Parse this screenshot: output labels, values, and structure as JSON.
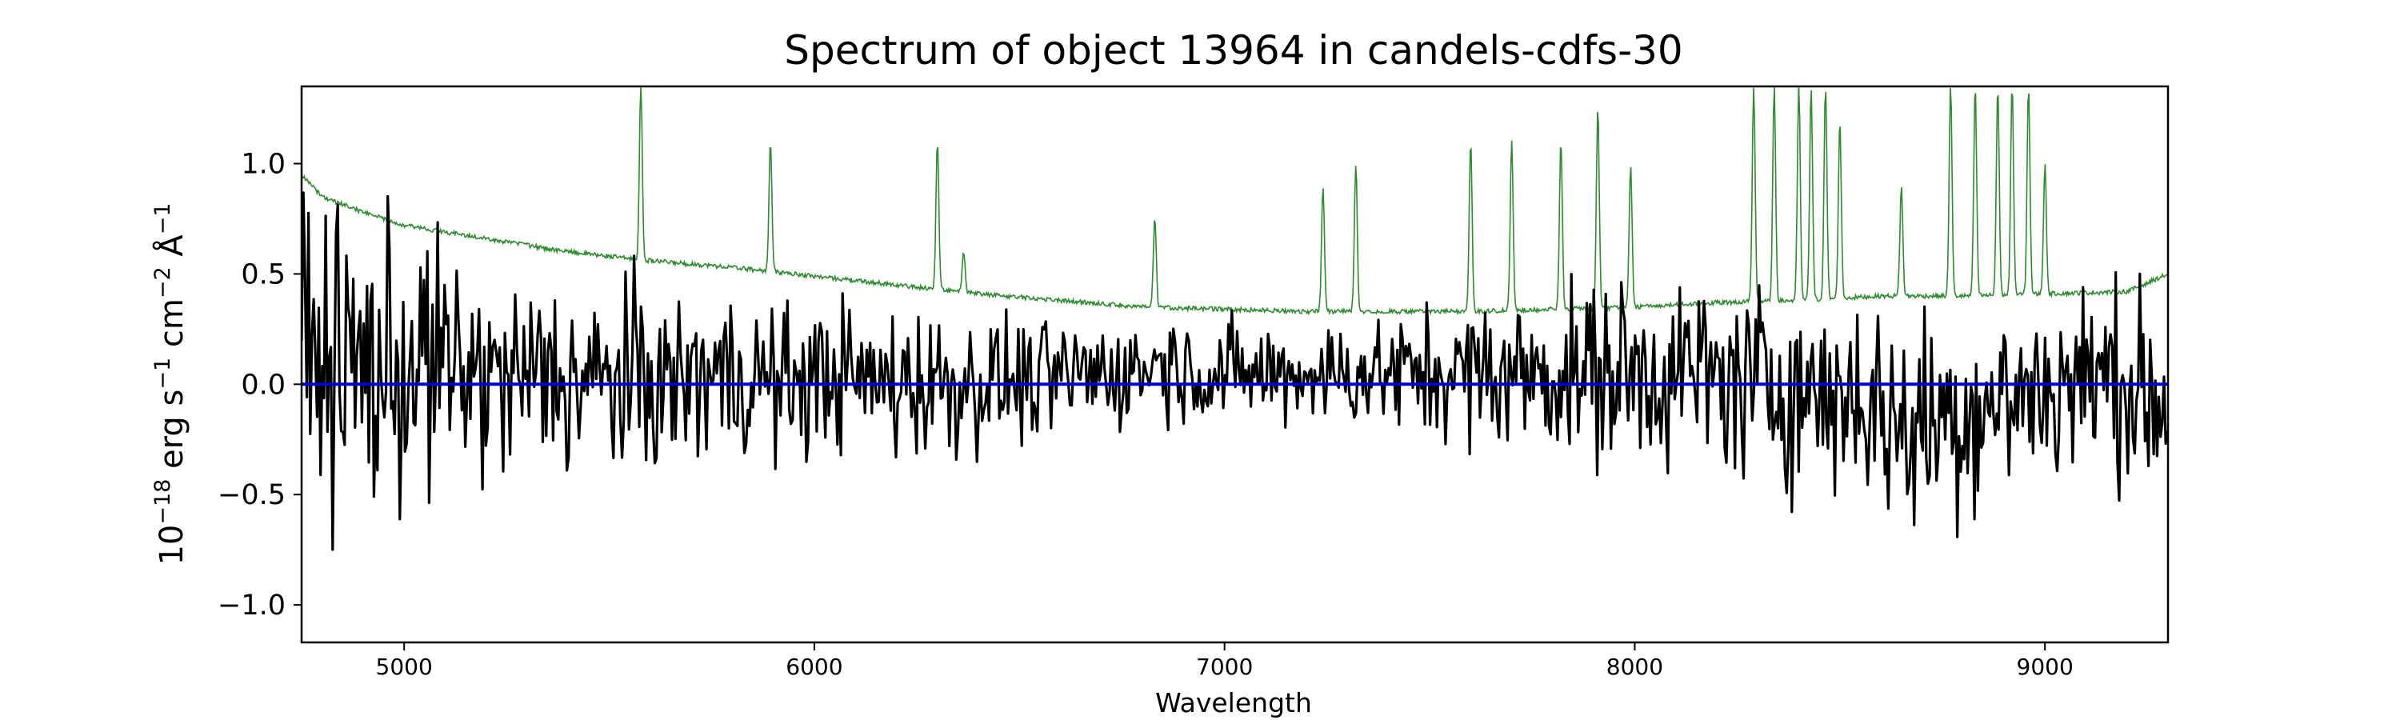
{
  "chart_data": {
    "type": "line",
    "title": "Spectrum of object 13964 in candels-cdfs-30",
    "xlabel": "Wavelength",
    "ylabel": "10^-18 erg s^-1 cm^-2 Å^-1",
    "xlim": [
      4750,
      9300
    ],
    "ylim": [
      -1.17,
      1.35
    ],
    "x_ticks": [
      5000,
      6000,
      7000,
      8000,
      9000
    ],
    "y_ticks": [
      {
        "value": 1.0,
        "label": "1.0"
      },
      {
        "value": 0.5,
        "label": "0.5"
      },
      {
        "value": 0.0,
        "label": "0.0"
      },
      {
        "value": -0.5,
        "label": "−0.5"
      },
      {
        "value": -1.0,
        "label": "−1.0"
      }
    ],
    "grid": false,
    "series": [
      {
        "role": "flux",
        "color": "#000000",
        "x": [
          4750,
          4850,
          4950,
          5050,
          5150,
          5250,
          5350,
          5450,
          5550,
          5650,
          5750,
          5850,
          5950,
          6050,
          6150,
          6250,
          6350,
          6450,
          6550,
          6650,
          6750,
          6850,
          6950,
          7050,
          7150,
          7250,
          7350,
          7450,
          7550,
          7650,
          7750,
          7850,
          7950,
          8050,
          8150,
          8250,
          8350,
          8450,
          8550,
          8650,
          8750,
          8850,
          8950,
          9050,
          9150,
          9300
        ],
        "values": [
          0.15,
          0.1,
          0.05,
          0.1,
          0.05,
          0.0,
          0.05,
          0.0,
          0.02,
          0.0,
          0.05,
          0.03,
          0.0,
          0.05,
          0.0,
          0.02,
          0.0,
          0.02,
          0.0,
          0.05,
          0.05,
          0.1,
          0.05,
          0.05,
          0.05,
          0.05,
          0.05,
          0.05,
          0.05,
          0.05,
          0.05,
          0.05,
          0.05,
          0.05,
          0.05,
          0.0,
          0.0,
          -0.05,
          -0.05,
          -0.2,
          -0.15,
          -0.1,
          -0.05,
          0.0,
          0.05,
          -0.1
        ],
        "spread": [
          0.4,
          0.45,
          0.42,
          0.4,
          0.32,
          0.3,
          0.3,
          0.3,
          0.28,
          0.26,
          0.25,
          0.25,
          0.22,
          0.22,
          0.22,
          0.24,
          0.22,
          0.18,
          0.18,
          0.17,
          0.16,
          0.16,
          0.15,
          0.15,
          0.15,
          0.15,
          0.17,
          0.18,
          0.2,
          0.22,
          0.22,
          0.25,
          0.28,
          0.28,
          0.28,
          0.28,
          0.3,
          0.3,
          0.3,
          0.35,
          0.32,
          0.3,
          0.3,
          0.3,
          0.28,
          0.3
        ]
      },
      {
        "role": "model",
        "color": "#0000cc",
        "x": [
          4750,
          9300
        ],
        "values": [
          0.0,
          0.0
        ]
      },
      {
        "role": "noise",
        "color": "#2e8b2e",
        "x": [
          4750,
          4800,
          4900,
          5000,
          5200,
          5400,
          5600,
          5800,
          6000,
          6200,
          6400,
          6600,
          6800,
          7000,
          7200,
          7400,
          7600,
          7800,
          8000,
          8200,
          8400,
          8600,
          8800,
          9000,
          9200,
          9300
        ],
        "values": [
          0.95,
          0.85,
          0.78,
          0.72,
          0.66,
          0.6,
          0.56,
          0.53,
          0.49,
          0.45,
          0.41,
          0.38,
          0.35,
          0.34,
          0.33,
          0.33,
          0.33,
          0.34,
          0.35,
          0.37,
          0.38,
          0.4,
          0.4,
          0.41,
          0.42,
          0.5
        ],
        "emission_lines": [
          {
            "x": 5577,
            "peak": 1.35
          },
          {
            "x": 5893,
            "peak": 1.1
          },
          {
            "x": 6300,
            "peak": 1.1
          },
          {
            "x": 6364,
            "peak": 0.6
          },
          {
            "x": 6830,
            "peak": 0.75
          },
          {
            "x": 7240,
            "peak": 0.9
          },
          {
            "x": 7320,
            "peak": 1.0
          },
          {
            "x": 7600,
            "peak": 1.1
          },
          {
            "x": 7700,
            "peak": 1.1
          },
          {
            "x": 7820,
            "peak": 1.1
          },
          {
            "x": 7910,
            "peak": 1.25
          },
          {
            "x": 7990,
            "peak": 1.0
          },
          {
            "x": 8290,
            "peak": 1.35
          },
          {
            "x": 8340,
            "peak": 1.35
          },
          {
            "x": 8400,
            "peak": 1.35
          },
          {
            "x": 8430,
            "peak": 1.35
          },
          {
            "x": 8465,
            "peak": 1.35
          },
          {
            "x": 8500,
            "peak": 1.2
          },
          {
            "x": 8650,
            "peak": 0.9
          },
          {
            "x": 8770,
            "peak": 1.35
          },
          {
            "x": 8830,
            "peak": 1.35
          },
          {
            "x": 8885,
            "peak": 1.35
          },
          {
            "x": 8920,
            "peak": 1.35
          },
          {
            "x": 8960,
            "peak": 1.35
          },
          {
            "x": 9000,
            "peak": 1.0
          }
        ]
      }
    ]
  }
}
